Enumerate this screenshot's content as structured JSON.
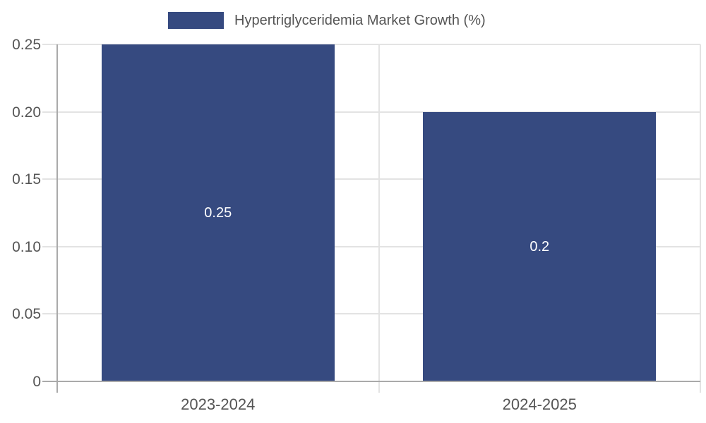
{
  "legend": {
    "label": "Hypertriglyceridemia Market Growth (%)"
  },
  "chart_data": {
    "type": "bar",
    "title": "Hypertriglyceridemia Market Growth (%)",
    "categories": [
      "2023-2024",
      "2024-2025"
    ],
    "values": [
      0.25,
      0.2
    ],
    "value_labels": [
      "0.25",
      "0.2"
    ],
    "xlabel": "",
    "ylabel": "",
    "ylim": [
      0,
      0.25
    ],
    "yticks": [
      0,
      0.05,
      0.1,
      0.15,
      0.2,
      0.25
    ],
    "ytick_labels": [
      "0",
      "0.05",
      "0.10",
      "0.15",
      "0.20",
      "0.25"
    ],
    "grid": true,
    "legend_position": "top-center",
    "colors": {
      "bar": "#364A80",
      "bar_value_text": "#ffffff",
      "axis_line": "#aaaaaa",
      "grid_line": "#e3e3e3",
      "tick_text": "#555555",
      "legend_text": "#555555",
      "background": "#ffffff"
    }
  }
}
